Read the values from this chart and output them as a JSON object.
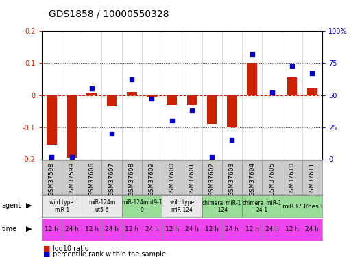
{
  "title": "GDS1858 / 10000550328",
  "samples": [
    "GSM37598",
    "GSM37599",
    "GSM37606",
    "GSM37607",
    "GSM37608",
    "GSM37609",
    "GSM37600",
    "GSM37601",
    "GSM37602",
    "GSM37603",
    "GSM37604",
    "GSM37605",
    "GSM37610",
    "GSM37611"
  ],
  "log10_ratio": [
    -0.155,
    -0.195,
    0.005,
    -0.035,
    0.01,
    -0.005,
    -0.03,
    -0.03,
    -0.09,
    -0.1,
    0.1,
    0.0,
    0.055,
    0.02
  ],
  "percentile_rank": [
    2,
    2,
    55,
    20,
    62,
    47,
    30,
    38,
    2,
    15,
    82,
    52,
    73,
    67
  ],
  "ylim": [
    -0.2,
    0.2
  ],
  "ylim_right": [
    0,
    100
  ],
  "yticks_left": [
    -0.2,
    -0.1,
    0.0,
    0.1,
    0.2
  ],
  "yticks_right": [
    0,
    25,
    50,
    75,
    100
  ],
  "ytick_labels_left": [
    "-0.2",
    "-0.1",
    "0",
    "0.1",
    "0.2"
  ],
  "ytick_labels_right": [
    "0",
    "25",
    "50",
    "75",
    "100%"
  ],
  "hlines_dotted": [
    0.1,
    -0.1
  ],
  "bar_color": "#cc2200",
  "dot_color": "#0000cc",
  "agent_groups": [
    {
      "label": "wild type\nmiR-1",
      "start": 0,
      "end": 2,
      "color": "#e8e8e8"
    },
    {
      "label": "miR-124m\nut5-6",
      "start": 2,
      "end": 4,
      "color": "#e8e8e8"
    },
    {
      "label": "miR-124mut9-1\n0",
      "start": 4,
      "end": 6,
      "color": "#99dd99"
    },
    {
      "label": "wild type\nmiR-124",
      "start": 6,
      "end": 8,
      "color": "#e8e8e8"
    },
    {
      "label": "chimera_miR-1\n-124",
      "start": 8,
      "end": 10,
      "color": "#99dd99"
    },
    {
      "label": "chimera_miR-1\n24-1",
      "start": 10,
      "end": 12,
      "color": "#99dd99"
    },
    {
      "label": "miR373/hes3",
      "start": 12,
      "end": 14,
      "color": "#99dd99"
    }
  ],
  "time_labels": [
    "12 h",
    "24 h",
    "12 h",
    "24 h",
    "12 h",
    "24 h",
    "12 h",
    "24 h",
    "12 h",
    "24 h",
    "12 h",
    "24 h",
    "12 h",
    "24 h"
  ],
  "time_color": "#ee44ee",
  "label_color_left": "#cc2200",
  "label_color_right": "#0000cc",
  "background_color": "#ffffff",
  "sample_bg": "#cccccc",
  "legend_red_label": "log10 ratio",
  "legend_blue_label": "percentile rank within the sample",
  "dotted_line_color": "#333333",
  "zero_line_color": "#cc2200",
  "title_fontsize": 10,
  "tick_fontsize": 7,
  "sample_fontsize": 6.5
}
